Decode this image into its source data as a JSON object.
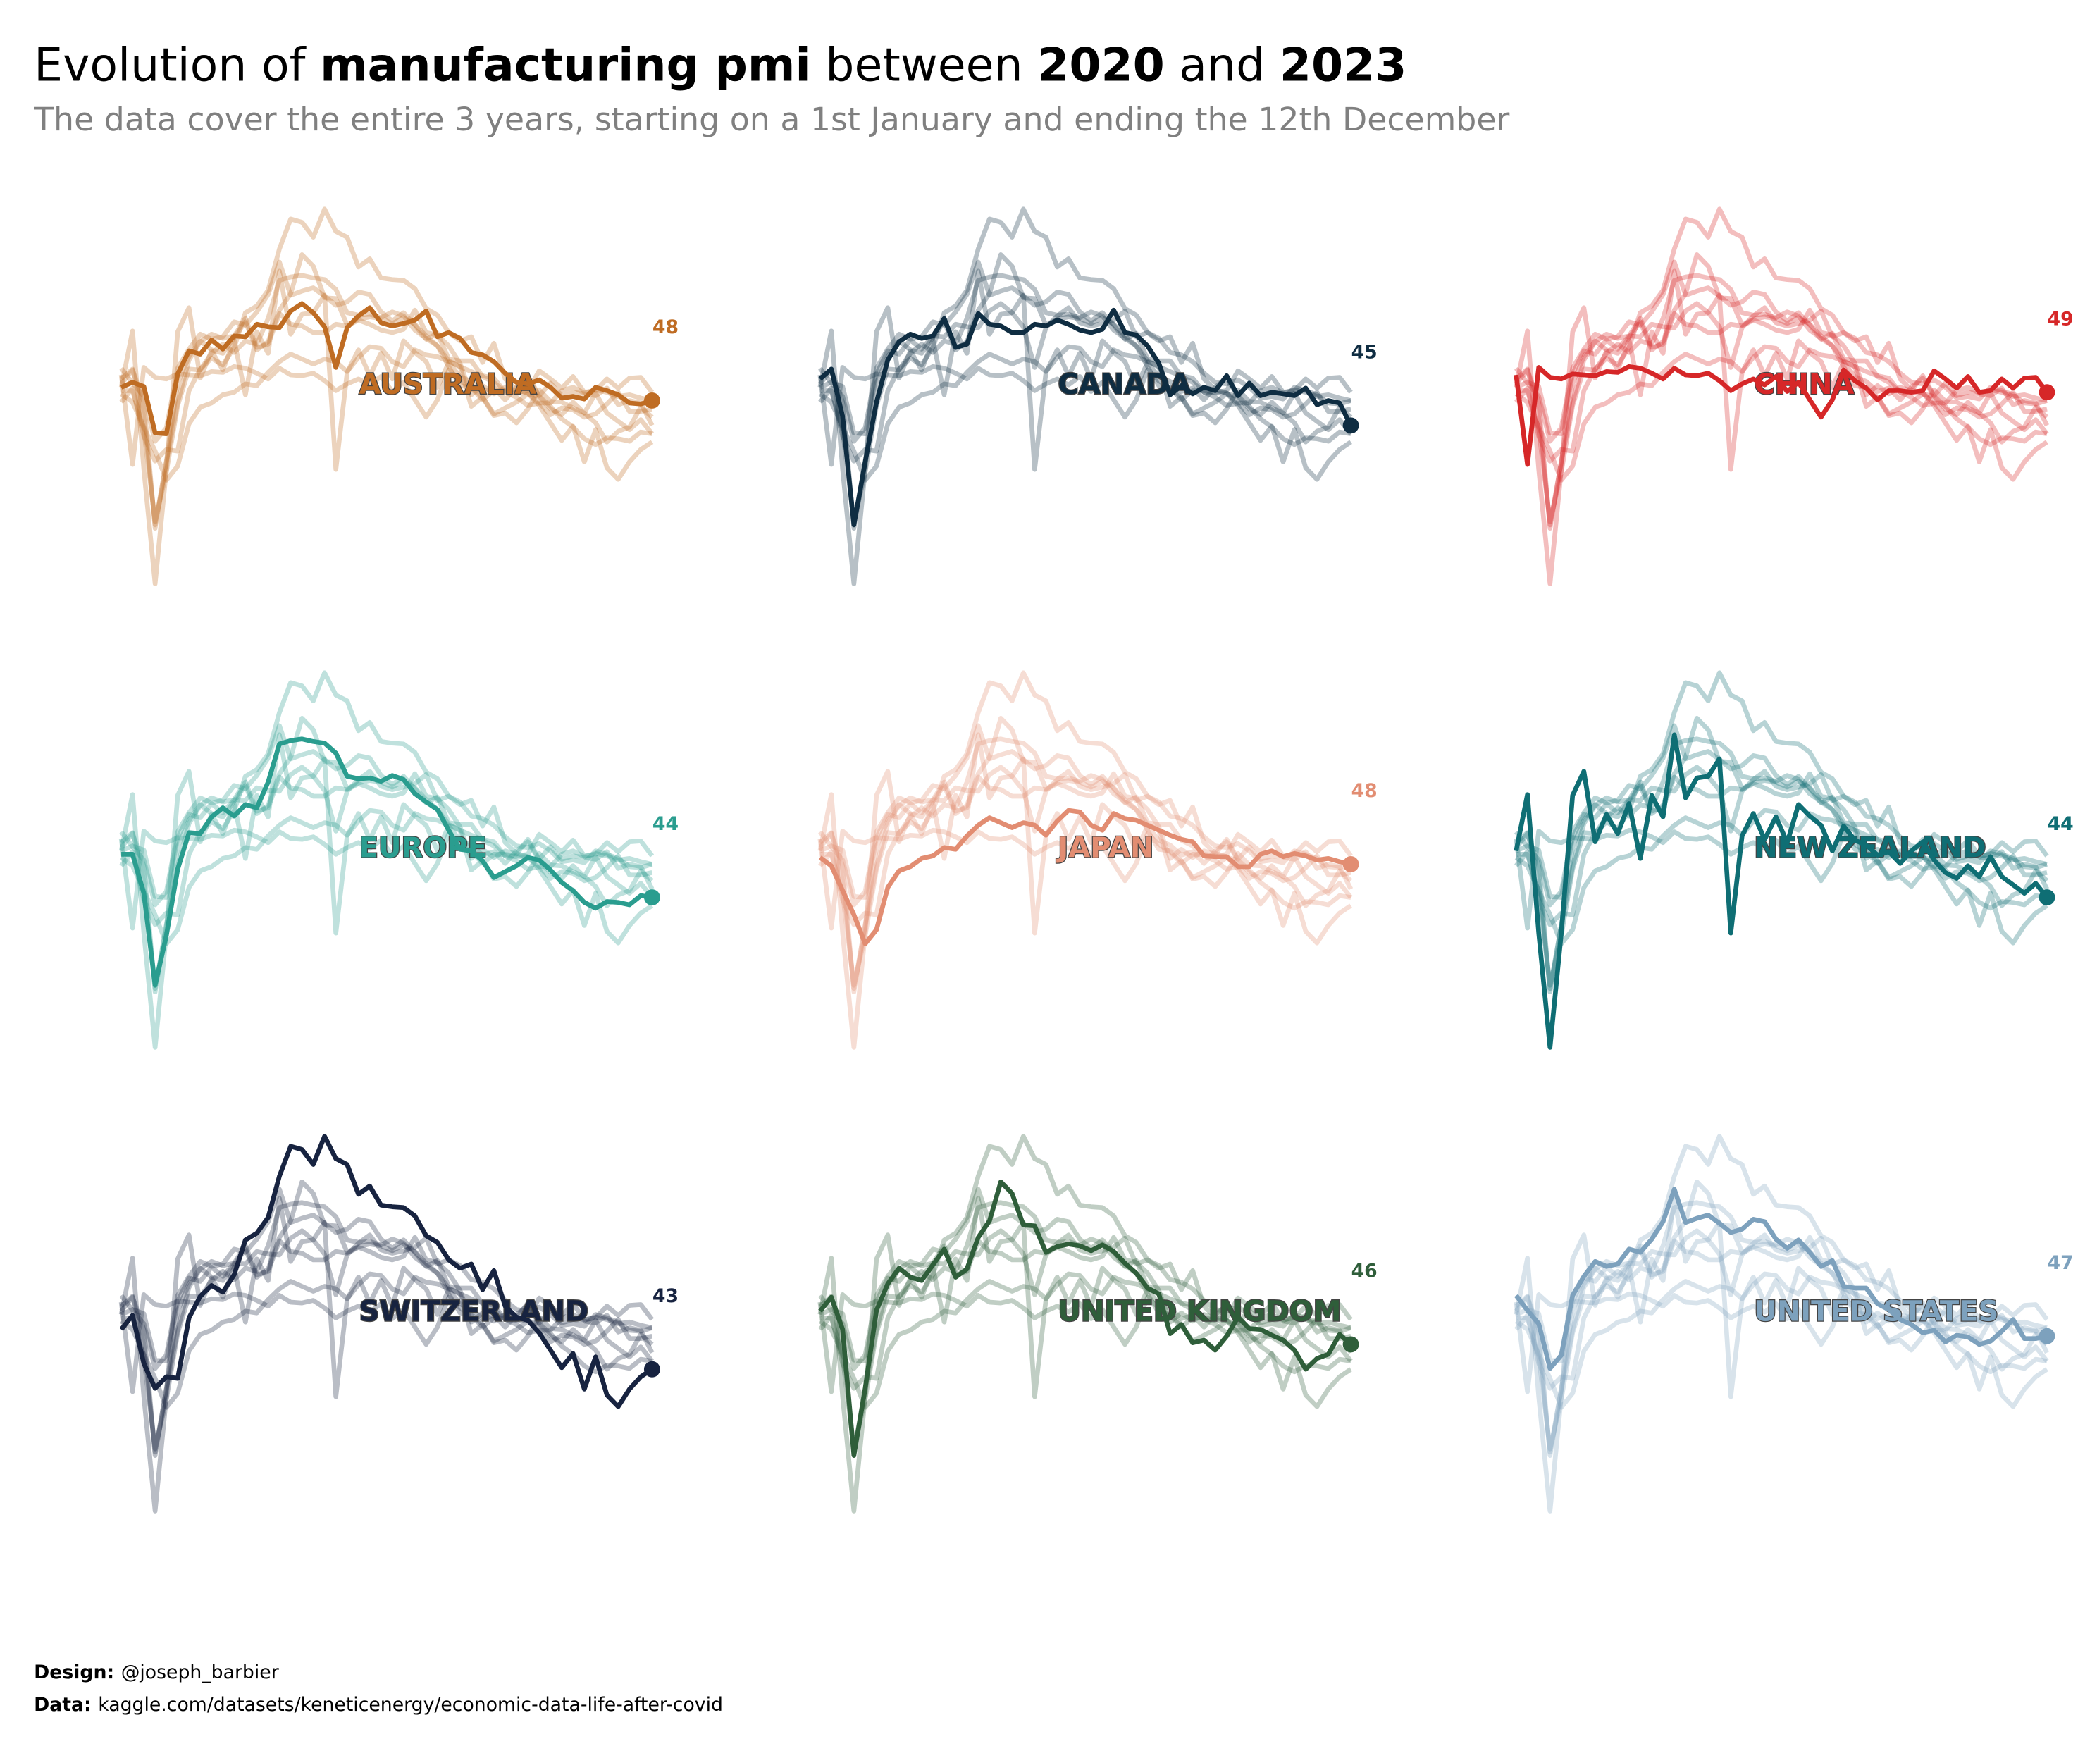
{
  "chart_data": {
    "type": "line",
    "title_parts": [
      "Evolution of ",
      "manufacturing pmi",
      " between ",
      "2020",
      " and ",
      "2023"
    ],
    "title_bold": [
      false,
      true,
      false,
      true,
      false,
      true
    ],
    "subtitle": "The data cover the entire 3 years, starting on a 1st January and ending the 12th December",
    "credits": [
      {
        "label": "Design:",
        "text": "@joseph_barbier"
      },
      {
        "label": "Data:",
        "text": "kaggle.com/datasets/keneticenergy/economic-data-life-after-covid"
      }
    ],
    "ylim": [
      25,
      72
    ],
    "columns": 3,
    "series": [
      {
        "name": "AUSTRALIA",
        "color": "#bf6c23",
        "values": [
          49.6,
          50.2,
          49.7,
          44.1,
          44.0,
          51.2,
          54.0,
          53.6,
          55.3,
          54.2,
          55.8,
          55.7,
          57.2,
          56.9,
          56.8,
          58.8,
          59.7,
          58.6,
          56.9,
          52.0,
          56.8,
          58.2,
          59.2,
          57.4,
          57.0,
          57.3,
          57.7,
          58.8,
          55.7,
          56.2,
          55.5,
          53.8,
          53.5,
          52.7,
          51.3,
          50.2,
          50.0,
          50.5,
          49.6,
          48.3,
          48.5,
          48.2,
          49.6,
          49.2,
          48.7,
          47.7,
          47.6,
          48
        ]
      },
      {
        "name": "CANADA",
        "color": "#0f2d42",
        "values": [
          50.6,
          51.8,
          46.1,
          33.0,
          40.6,
          47.8,
          52.9,
          55.1,
          56.0,
          55.5,
          55.8,
          57.9,
          54.4,
          54.8,
          58.5,
          57.2,
          57.0,
          56.2,
          56.2,
          57.2,
          57.0,
          57.7,
          57.2,
          56.5,
          56.2,
          56.6,
          58.9,
          56.2,
          55.9,
          54.6,
          52.5,
          48.7,
          49.8,
          48.8,
          49.6,
          49.2,
          51.0,
          48.6,
          50.1,
          48.6,
          49.0,
          48.8,
          48.6,
          49.5,
          47.5,
          48.0,
          47.7,
          45
        ]
      },
      {
        "name": "CHINA",
        "color": "#d62728",
        "values": [
          51.1,
          40.3,
          52.0,
          50.8,
          50.6,
          51.2,
          51.1,
          51.0,
          51.5,
          51.4,
          52.1,
          51.9,
          51.3,
          50.6,
          51.9,
          51.1,
          51.0,
          51.3,
          50.4,
          49.2,
          50.0,
          50.6,
          49.9,
          50.9,
          49.1,
          50.2,
          48.1,
          46.0,
          48.1,
          51.7,
          50.4,
          49.5,
          48.1,
          49.2,
          49.2,
          49.0,
          49.2,
          51.6,
          50.6,
          49.5,
          50.9,
          49.0,
          49.2,
          50.6,
          49.5,
          50.7,
          50.8,
          49
        ]
      },
      {
        "name": "EUROPE",
        "color": "#2a9d8f",
        "values": [
          49.2,
          49.2,
          44.5,
          33.4,
          39.4,
          47.4,
          51.8,
          51.7,
          53.7,
          54.8,
          53.8,
          55.2,
          54.8,
          57.9,
          62.5,
          62.9,
          63.1,
          62.8,
          62.6,
          61.4,
          58.6,
          58.3,
          58.4,
          58.0,
          58.7,
          58.2,
          56.5,
          55.5,
          54.6,
          52.1,
          49.8,
          49.6,
          48.4,
          46.4,
          47.1,
          47.8,
          48.8,
          48.5,
          47.3,
          45.8,
          44.8,
          43.4,
          42.7,
          43.5,
          43.4,
          43.1,
          44.2,
          44
        ]
      },
      {
        "name": "JAPAN",
        "color": "#e28d72",
        "values": [
          48.8,
          47.8,
          44.8,
          41.9,
          38.4,
          40.1,
          45.2,
          47.2,
          47.7,
          48.7,
          49.0,
          50.0,
          49.8,
          51.4,
          52.7,
          53.6,
          53.0,
          52.4,
          53.0,
          52.7,
          51.5,
          53.2,
          54.5,
          54.3,
          52.7,
          52.1,
          54.1,
          53.5,
          53.3,
          52.7,
          52.1,
          51.5,
          51.0,
          50.7,
          49.0,
          48.9,
          48.9,
          47.7,
          47.7,
          49.2,
          49.6,
          48.9,
          49.3,
          49.0,
          48.5,
          48.7,
          48.3,
          48
        ]
      },
      {
        "name": "NEW ZEALAND",
        "color": "#0f6e74",
        "values": [
          49.6,
          56.4,
          39.7,
          25.9,
          39.7,
          56.3,
          59.2,
          50.7,
          54.0,
          51.7,
          55.3,
          48.7,
          56.3,
          53.7,
          63.6,
          56.0,
          58.4,
          58.6,
          60.7,
          39.7,
          51.4,
          54.1,
          51.0,
          53.7,
          50.6,
          55.2,
          53.8,
          52.7,
          49.6,
          52.6,
          50.9,
          50.3,
          49.1,
          49.5,
          48.1,
          49.6,
          50.7,
          48.5,
          47.0,
          46.3,
          47.8,
          46.5,
          48.9,
          46.5,
          45.5,
          44.5,
          45.7,
          44
        ]
      },
      {
        "name": "SWITZERLAND",
        "color": "#172340",
        "values": [
          47.8,
          49.5,
          43.7,
          40.7,
          42.1,
          41.9,
          49.2,
          51.8,
          53.1,
          52.3,
          54.4,
          58.6,
          59.4,
          61.3,
          66.3,
          69.9,
          69.5,
          67.7,
          71.1,
          68.4,
          67.7,
          64.1,
          65.1,
          62.8,
          62.6,
          62.5,
          61.5,
          59.1,
          58.3,
          56.2,
          55.2,
          55.7,
          52.6,
          54.9,
          50.6,
          49.3,
          48.9,
          47.4,
          45.3,
          43.2,
          44.9,
          40.6,
          44.5,
          39.9,
          38.5,
          40.6,
          42.1,
          43
        ]
      },
      {
        "name": "UNITED KINGDOM",
        "color": "#2f5e3a",
        "values": [
          50.0,
          51.7,
          47.8,
          32.6,
          40.7,
          50.1,
          53.3,
          55.2,
          54.1,
          53.7,
          55.6,
          57.5,
          54.1,
          55.1,
          58.9,
          60.9,
          65.6,
          64.2,
          60.4,
          60.3,
          57.1,
          57.8,
          58.1,
          57.9,
          57.3,
          58.0,
          57.2,
          55.8,
          54.6,
          52.8,
          52.1,
          47.3,
          48.4,
          46.2,
          46.5,
          45.3,
          47.0,
          49.3,
          47.9,
          47.8,
          47.1,
          46.5,
          45.3,
          43.0,
          44.3,
          44.8,
          47.2,
          46
        ]
      },
      {
        "name": "UNITED STATES",
        "color": "#7da1bd",
        "values": [
          51.9,
          50.1,
          48.5,
          43.1,
          44.7,
          51.9,
          54.2,
          56.0,
          55.4,
          55.7,
          57.5,
          57.1,
          58.7,
          60.8,
          64.7,
          60.7,
          61.2,
          61.6,
          60.6,
          59.5,
          59.9,
          61.1,
          60.8,
          58.7,
          57.6,
          58.6,
          57.1,
          55.4,
          56.1,
          53.0,
          52.8,
          52.8,
          50.9,
          50.2,
          49.0,
          48.4,
          47.4,
          47.7,
          46.3,
          47.1,
          46.9,
          46.0,
          46.4,
          47.6,
          49.0,
          46.7,
          46.7,
          47
        ]
      }
    ]
  }
}
